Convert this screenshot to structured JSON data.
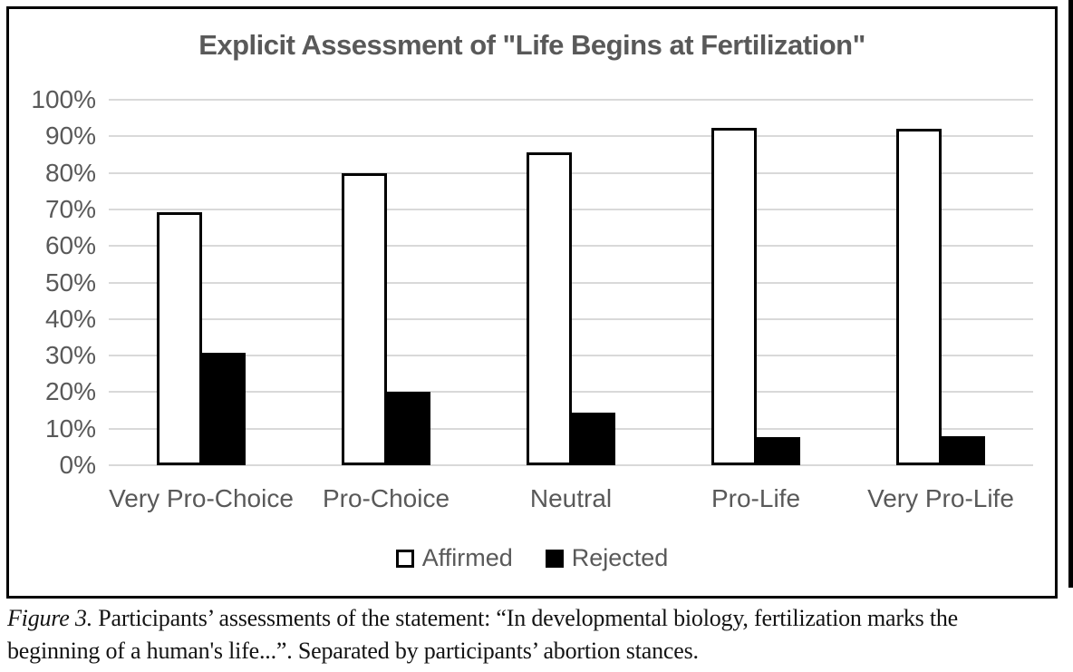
{
  "chart_data": {
    "type": "bar",
    "title": "Explicit Assessment of \"Life Begins at Fertilization\"",
    "categories": [
      "Very Pro-Choice",
      "Pro-Choice",
      "Neutral",
      "Pro-Life",
      "Very Pro-Life"
    ],
    "series": [
      {
        "name": "Affirmed",
        "values": [
          69.2,
          79.8,
          85.7,
          92.3,
          92.1
        ],
        "fill": "#ffffff",
        "border": "#000000"
      },
      {
        "name": "Rejected",
        "values": [
          30.8,
          20.2,
          14.3,
          7.7,
          7.9
        ],
        "fill": "#000000"
      }
    ],
    "ylim": [
      0,
      100
    ],
    "ytick_step": 10,
    "ytick_labels": [
      "0%",
      "10%",
      "20%",
      "30%",
      "40%",
      "50%",
      "60%",
      "70%",
      "80%",
      "90%",
      "100%"
    ],
    "grid": true,
    "legend_position": "bottom"
  },
  "caption": {
    "figure_label": "Figure 3.",
    "line1": " Participants’ assessments of the statement: “In developmental biology, fertilization marks the",
    "line2": "beginning of a human's life...”. Separated by participants’ abortion stances."
  },
  "colors": {
    "label_gray": "#595959",
    "gridline": "#d9d9d9",
    "bar_border": "#000000",
    "affirmed_fill": "#ffffff",
    "rejected_fill": "#000000"
  }
}
